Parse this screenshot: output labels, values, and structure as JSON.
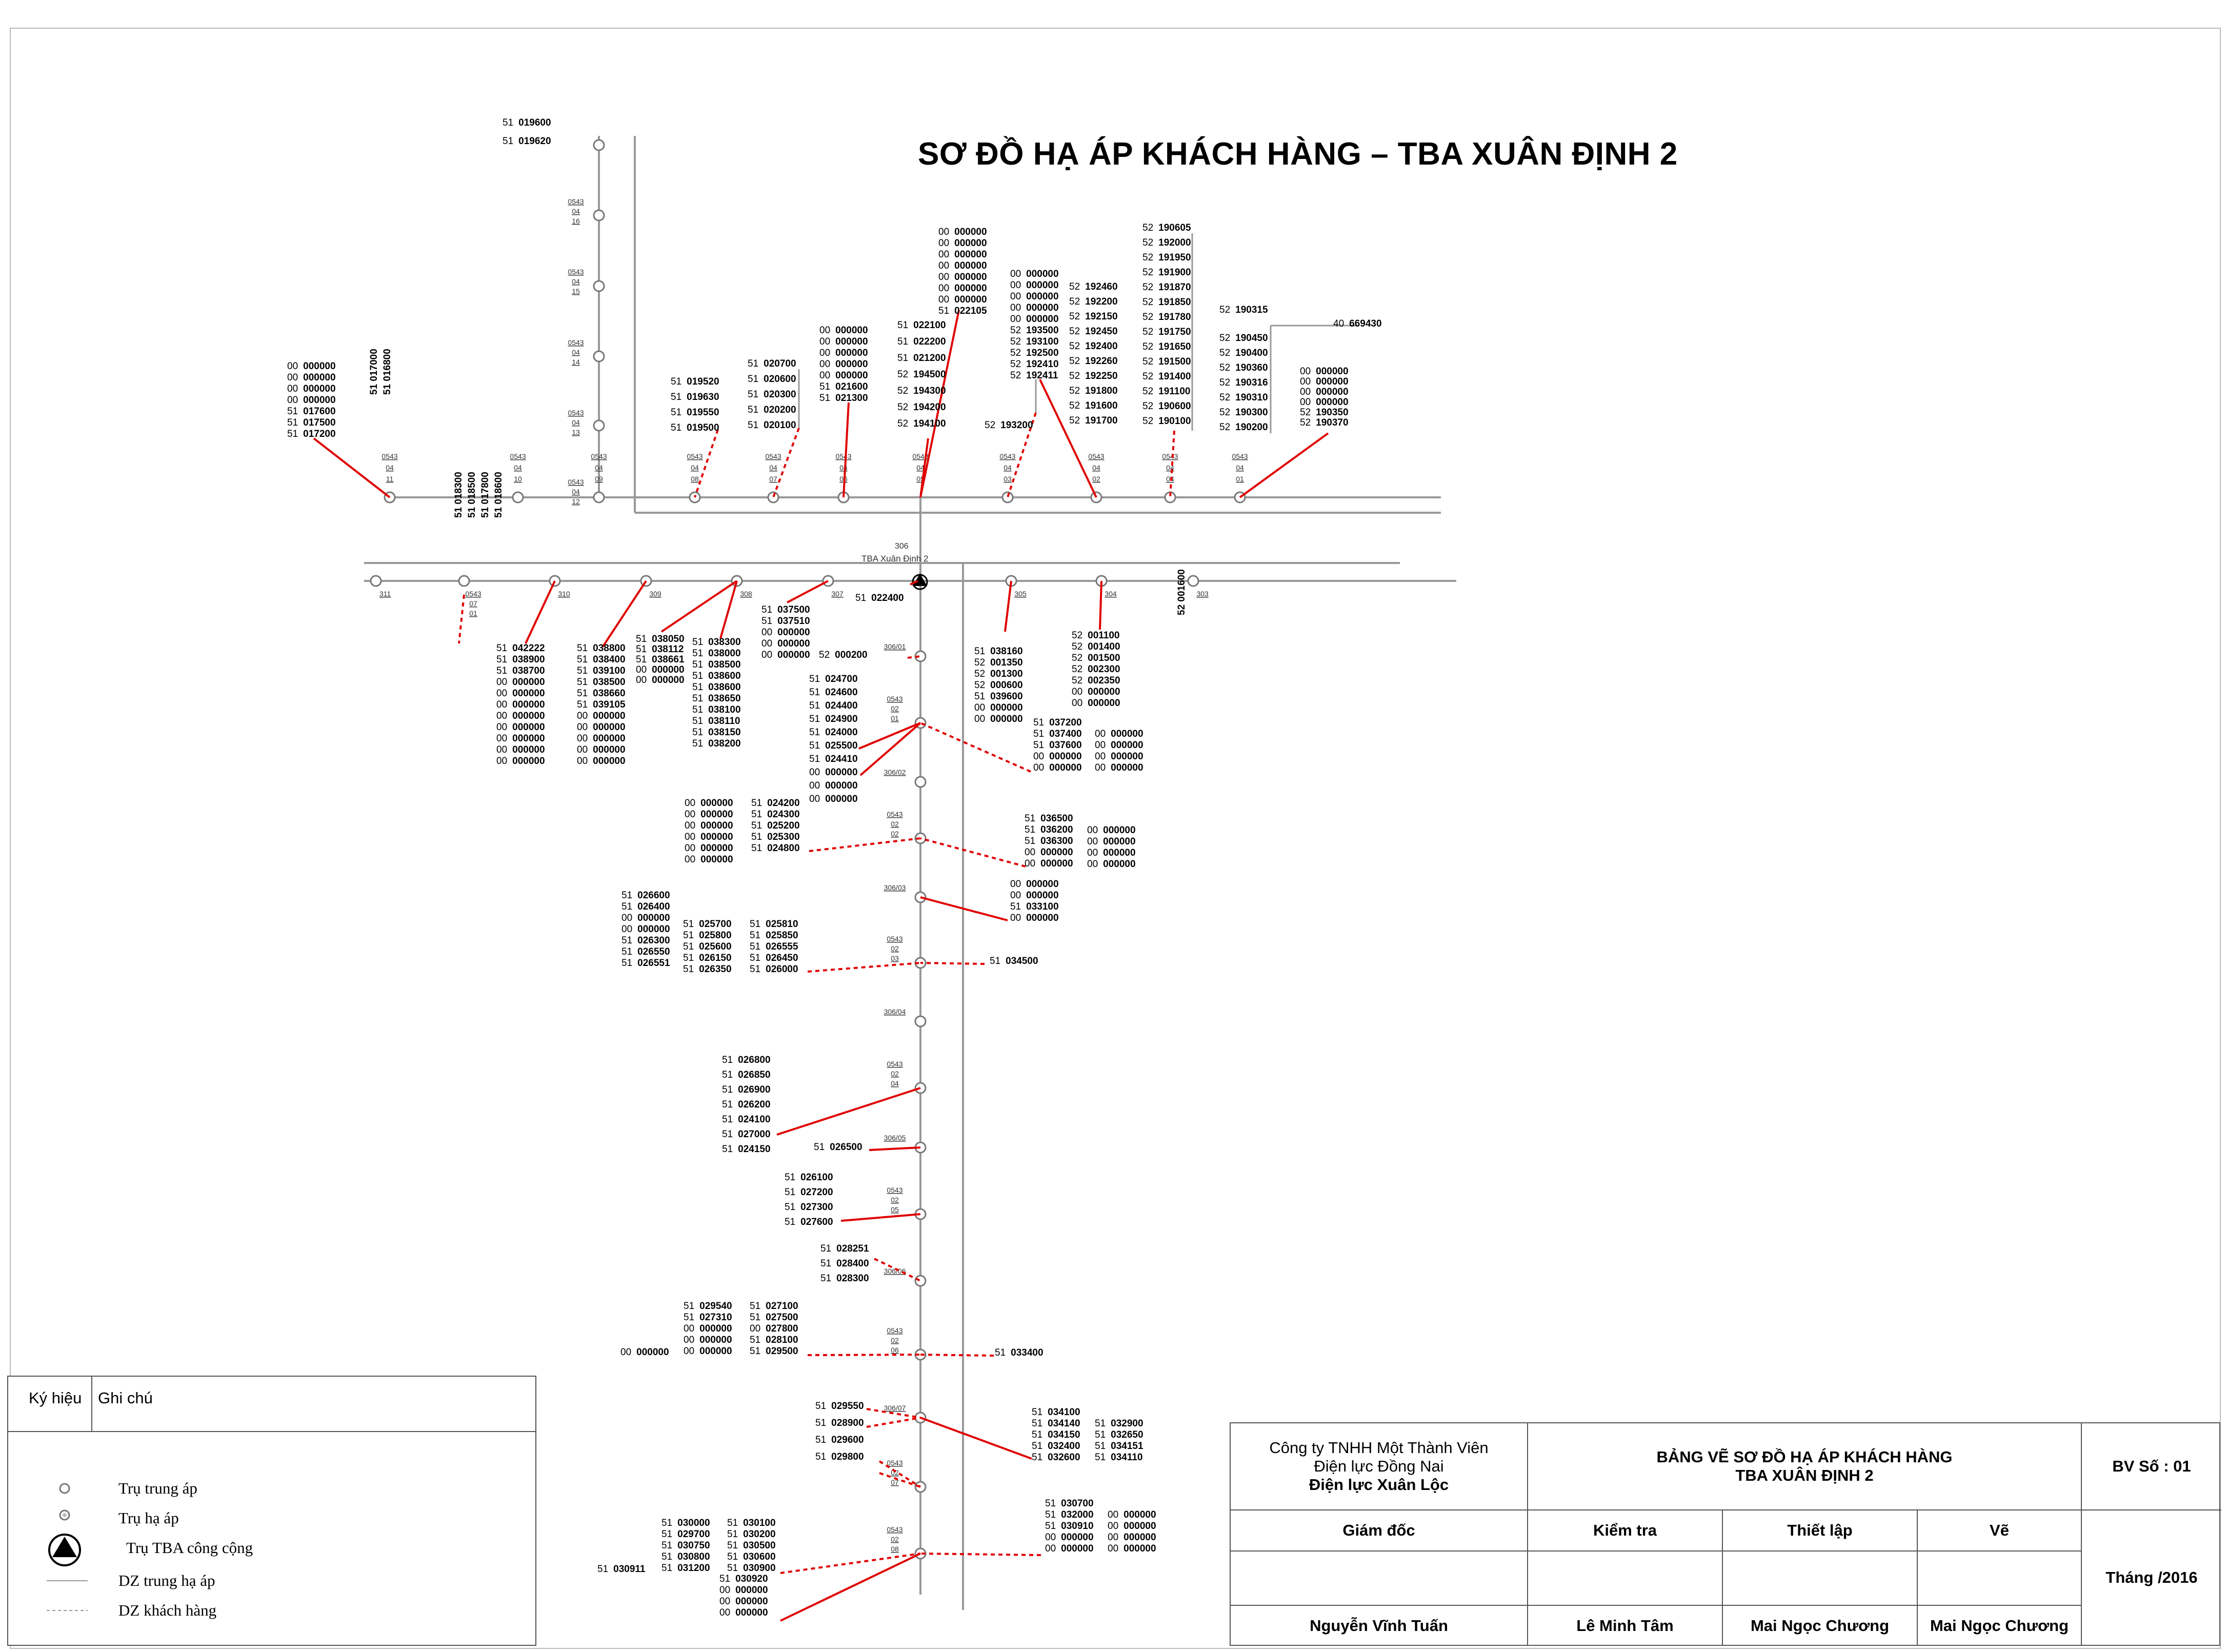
{
  "title": "SƠ ĐỒ HẠ ÁP KHÁCH HÀNG – TBA XUÂN ĐỊNH 2",
  "colors": {
    "line": "#999999",
    "customer_link": "#e00000",
    "text": "#000000"
  },
  "substation": {
    "code": "306",
    "name": "TBA Xuân Định 2"
  },
  "groups": {
    "g_lt1": [
      "00 000000",
      "00 000000",
      "00 000000",
      "00 000000",
      "51 017600",
      "51 017500",
      "51 017200"
    ],
    "g_lt2": [
      "51 017000",
      "51 016800"
    ],
    "g_lt3": [
      "51 018300",
      "51 018500",
      "51 017800",
      "51 018600"
    ],
    "g_lt4": [
      "51 019600",
      "51 019620"
    ],
    "g_t1": [
      "51 019520",
      "51 019630",
      "51 019550",
      "51 019500"
    ],
    "g_t2": [
      "51 020700",
      "51 020600",
      "51 020300",
      "51 020200",
      "51 020100"
    ],
    "g_t3": [
      "00 000000",
      "00 000000",
      "00 000000",
      "00 000000",
      "00 000000",
      "51 021600",
      "51 021300"
    ],
    "g_t4a": [
      "00 000000",
      "00 000000",
      "00 000000",
      "00 000000",
      "00 000000",
      "00 000000",
      "00 000000",
      "51 022105"
    ],
    "g_t4b": [
      "51 022100",
      "51 022200",
      "51 021200",
      "52 194500",
      "52 194300",
      "52 194200",
      "52 194100"
    ],
    "g_t5a": [
      "00 000000",
      "00 000000",
      "00 000000",
      "00 000000",
      "00 000000",
      "52 193500",
      "52 193100",
      "52 192500",
      "52 192410",
      "52 192411"
    ],
    "g_t5b": [
      "52 193200"
    ],
    "g_t6": [
      "52 192460",
      "52 192200",
      "52 192150",
      "52 192450",
      "52 192400",
      "52 192260",
      "52 192250",
      "52 191800",
      "52 191600",
      "52 191700"
    ],
    "g_t7": [
      "52 190605",
      "52 192000",
      "52 191950",
      "52 191900",
      "52 191870",
      "52 191850",
      "52 191780",
      "52 191750",
      "52 191650",
      "52 191500",
      "52 191400",
      "52 191100",
      "52 190600",
      "52 190100"
    ],
    "g_t8": [
      "52 190315"
    ],
    "g_t9": [
      "52 190450",
      "52 190400",
      "52 190360",
      "52 190316",
      "52 190310",
      "52 190300",
      "52 190200"
    ],
    "g_t10": [
      "40 669430"
    ],
    "g_t11": [
      "00 000000",
      "00 000000",
      "00 000000",
      "00 000000",
      "52 190350",
      "52 190370"
    ],
    "g_m1": [
      "51 042222",
      "51 038900",
      "51 038700",
      "00 000000",
      "00 000000",
      "00 000000",
      "00 000000",
      "00 000000",
      "00 000000",
      "00 000000",
      "00 000000"
    ],
    "g_m2": [
      "51 038800",
      "51 038400",
      "51 039100",
      "51 038500",
      "51 038660",
      "51 039105",
      "00 000000",
      "00 000000",
      "00 000000",
      "00 000000",
      "00 000000"
    ],
    "g_m3": [
      "51 038050",
      "51 038112",
      "51 038661",
      "00 000000",
      "00 000000"
    ],
    "g_m4": [
      "51 038300",
      "51 038000",
      "51 038500",
      "51 038600",
      "51 038600",
      "51 038650",
      "51 038100",
      "51 038110",
      "51 038150",
      "51 038200"
    ],
    "g_m5": [
      "51 037500",
      "51 037510",
      "00 000000",
      "00 000000",
      "00 000000"
    ],
    "g_m6": [
      "51 022400"
    ],
    "g_m7": [
      "52 000200"
    ],
    "g_m8": [
      "51 038160",
      "52 001350",
      "52 001300",
      "52 000600",
      "51 039600",
      "00 000000",
      "00 000000"
    ],
    "g_m9": [
      "52 001100",
      "52 001400",
      "52 001500",
      "52 002300",
      "52 002350",
      "00 000000",
      "00 000000"
    ],
    "g_m10": [
      "52 001600"
    ],
    "g_b1": [
      "51 024700",
      "51 024600",
      "51 024400",
      "51 024900",
      "51 024000",
      "51 025500",
      "51 024410",
      "00 000000",
      "00 000000",
      "00 000000"
    ],
    "g_b2a": [
      "51 037200",
      "51 037400",
      "51 037600",
      "00 000000",
      "00 000000"
    ],
    "g_b2b": [
      "00 000000",
      "00 000000",
      "00 000000",
      "00 000000"
    ],
    "g_b3a": [
      "00 000000",
      "00 000000",
      "00 000000",
      "00 000000",
      "00 000000",
      "00 000000"
    ],
    "g_b3b": [
      "51 024200",
      "51 024300",
      "51 025200",
      "51 025300",
      "51 024800"
    ],
    "g_b4a": [
      "51 036500",
      "51 036200",
      "51 036300",
      "00 000000",
      "00 000000"
    ],
    "g_b4b": [
      "00 000000",
      "00 000000",
      "00 000000",
      "00 000000"
    ],
    "g_b5": [
      "00 000000",
      "00 000000",
      "51 033100",
      "00 000000"
    ],
    "g_b6a": [
      "51 026600",
      "51 026400",
      "00 000000",
      "00 000000",
      "51 026300",
      "51 026550",
      "51 026551"
    ],
    "g_b6b": [
      "51 025700",
      "51 025800",
      "51 025600",
      "51 026150",
      "51 026350"
    ],
    "g_b6c": [
      "51 025810",
      "51 025850",
      "51 026555",
      "51 026450",
      "51 026000"
    ],
    "g_b7": [
      "51 034500"
    ],
    "g_b8": [
      "51 026800",
      "51 026850",
      "51 026900",
      "51 026200",
      "51 024100",
      "51 027000",
      "51 024150"
    ],
    "g_b9": [
      "51 026500"
    ],
    "g_b10": [
      "51 026100",
      "51 027200",
      "51 027300",
      "51 027600"
    ],
    "g_b11": [
      "51 028251",
      "51 028400",
      "51 028300"
    ],
    "g_b12a": [
      "51 029540",
      "51 027310",
      "00 000000",
      "00 000000",
      "00 000000"
    ],
    "g_b12b": [
      "51 027100",
      "51 027500",
      "00 027800",
      "51 028100",
      "51 029500"
    ],
    "g_b12c": [
      "00 000000"
    ],
    "g_b13": [
      "51 033400"
    ],
    "g_b14": [
      "51 029550",
      "51 028900",
      "51 029600",
      "51 029800"
    ],
    "g_b15a": [
      "51 034100",
      "51 034140",
      "51 034150",
      "51 032400",
      "51 032600"
    ],
    "g_b15b": [
      "51 032900",
      "51 032650",
      "51 034151",
      "51 034110"
    ],
    "g_b16a": [
      "51 030000",
      "51 029700",
      "51 030750",
      "51 030800",
      "51 031200"
    ],
    "g_b16b": [
      "51 030100",
      "51 030200",
      "51 030500",
      "51 030600",
      "51 030900"
    ],
    "g_b16c": [
      "51 030911"
    ],
    "g_b16d": [
      "51 030920",
      "00 000000",
      "00 000000",
      "00 000000"
    ],
    "g_b17a": [
      "51 030700",
      "51 032000",
      "51 030910",
      "00 000000",
      "00 000000"
    ],
    "g_b17b": [
      "00 000000",
      "00 000000",
      "00 000000",
      "00 000000"
    ]
  },
  "pole_labels": {
    "p_top_11": [
      "0543",
      "04",
      "11"
    ],
    "p_top_10": [
      "0543",
      "04",
      "10"
    ],
    "p_top_09": [
      "0543",
      "04",
      "09"
    ],
    "p_top_08": [
      "0543",
      "04",
      "08"
    ],
    "p_top_07": [
      "0543",
      "04",
      "07"
    ],
    "p_top_06": [
      "0543",
      "04",
      "06"
    ],
    "p_top_05": [
      "0543",
      "04",
      "05"
    ],
    "p_top_03": [
      "0543",
      "04",
      "03"
    ],
    "p_top_02": [
      "0543",
      "04",
      "02"
    ],
    "p_top_04": [
      "0543",
      "04",
      "04"
    ],
    "p_top_01": [
      "0543",
      "04",
      "01"
    ],
    "p_v_16": [
      "0543",
      "04",
      "16"
    ],
    "p_v_15": [
      "0543",
      "04",
      "15"
    ],
    "p_v_14": [
      "0543",
      "04",
      "14"
    ],
    "p_v_13": [
      "0543",
      "04",
      "13"
    ],
    "p_v_12": [
      "0543",
      "04",
      "12"
    ],
    "p_mid_311": [
      "311"
    ],
    "p_mid_310": [
      "310"
    ],
    "p_mid_309": [
      "309"
    ],
    "p_mid_308": [
      "308"
    ],
    "p_mid_307": [
      "307"
    ],
    "p_mid_305": [
      "305"
    ],
    "p_mid_304": [
      "304"
    ],
    "p_mid_303": [
      "303"
    ],
    "p_mid_0543": [
      "0543",
      "07",
      "01"
    ],
    "p_d_1": [
      "306/01"
    ],
    "p_d_2": [
      "0543",
      "02",
      "01"
    ],
    "p_d_3": [
      "306/02"
    ],
    "p_d_4": [
      "0543",
      "02",
      "02"
    ],
    "p_d_5": [
      "306/03"
    ],
    "p_d_6": [
      "0543",
      "02",
      "03"
    ],
    "p_d_7": [
      "306/04"
    ],
    "p_d_8": [
      "0543",
      "02",
      "04"
    ],
    "p_d_9": [
      "306/05"
    ],
    "p_d_10": [
      "0543",
      "02",
      "05"
    ],
    "p_d_11": [
      "306/06"
    ],
    "p_d_12": [
      "0543",
      "02",
      "06"
    ],
    "p_d_13": [
      "306/07"
    ],
    "p_d_14": [
      "0543",
      "02",
      "07"
    ],
    "p_d_15": [
      "0543",
      "02",
      "08"
    ]
  },
  "legend": {
    "col1": "Ký hiệu",
    "col2": "Ghi chú",
    "items": [
      "Trụ trung áp",
      "Trụ hạ áp",
      "Trụ TBA  công cộng",
      "DZ trung hạ áp",
      "DZ khách hàng"
    ]
  },
  "title_block": {
    "company": [
      "Công ty TNHH Một Thành Viên",
      "Điện lực Đồng Nai",
      "Điện lực Xuân Lộc"
    ],
    "drawing_title": [
      "BẢNG VẼ SƠ ĐỒ HẠ ÁP KHÁCH HÀNG",
      "TBA XUÂN ĐỊNH 2"
    ],
    "sheet_no": "BV Số : 01",
    "roles": [
      "Giám đốc",
      "Kiểm tra",
      "Thiết lập",
      "Vẽ"
    ],
    "names": [
      "Nguyễn Vĩnh Tuấn",
      "Lê Minh Tâm",
      "Mai Ngọc Chương",
      "Mai Ngọc Chương"
    ],
    "date": "Tháng     /2016"
  }
}
